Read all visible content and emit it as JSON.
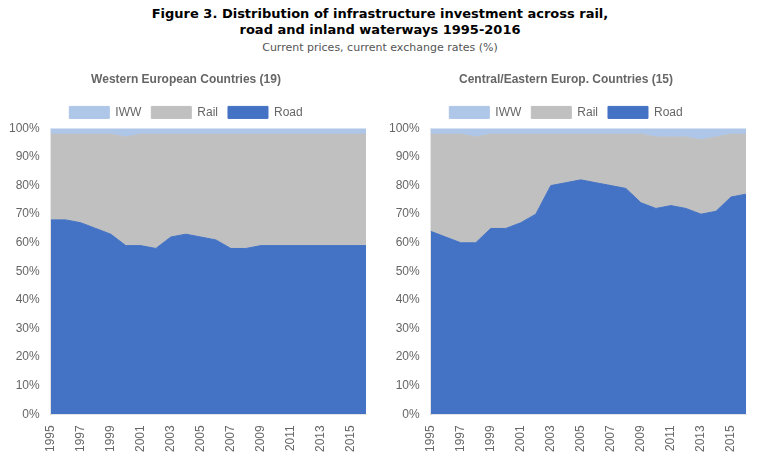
{
  "title": [
    "Figure 3. Distribution of infrastructure investment across rail,",
    "road and inland waterways 1995-2016"
  ],
  "subtitle": "Current prices, current exchange rates (%)",
  "chart_data": [
    {
      "type": "area",
      "title": "Western European Countries (19)",
      "x": [
        1995,
        1996,
        1997,
        1998,
        1999,
        2000,
        2001,
        2002,
        2003,
        2004,
        2005,
        2006,
        2007,
        2008,
        2009,
        2010,
        2011,
        2012,
        2013,
        2014,
        2015,
        2016
      ],
      "series": [
        {
          "name": "Road",
          "color": "#4472C4",
          "values": [
            68,
            68,
            67,
            65,
            63,
            59,
            59,
            58,
            62,
            63,
            62,
            61,
            58,
            58,
            59,
            59,
            59,
            59,
            59,
            59,
            59,
            59
          ]
        },
        {
          "name": "Rail",
          "color": "#C0C0C0",
          "values": [
            30,
            30,
            31,
            33,
            35,
            38,
            39,
            40,
            36,
            35,
            36,
            37,
            40,
            40,
            39,
            39,
            39,
            39,
            39,
            39,
            39,
            39
          ]
        },
        {
          "name": "IWW",
          "color": "#AEC6E8",
          "values": [
            2,
            2,
            2,
            2,
            2,
            3,
            2,
            2,
            2,
            2,
            2,
            2,
            2,
            2,
            2,
            2,
            2,
            2,
            2,
            2,
            2,
            2
          ]
        }
      ],
      "stacked": true,
      "xlim": [
        1995,
        2016
      ],
      "xticks": [
        1995,
        1997,
        1999,
        2001,
        2003,
        2005,
        2007,
        2009,
        2011,
        2013,
        2015
      ],
      "ylim": [
        0,
        100
      ],
      "yticks": [
        {
          "value": 0,
          "label": "0%"
        },
        {
          "value": 10,
          "label": "10%"
        },
        {
          "value": 20,
          "label": "20%"
        },
        {
          "value": 30,
          "label": "30%"
        },
        {
          "value": 40,
          "label": "40%"
        },
        {
          "value": 50,
          "label": "50%"
        },
        {
          "value": 60,
          "label": "60%"
        },
        {
          "value": 70,
          "label": "70%"
        },
        {
          "value": 80,
          "label": "80%"
        },
        {
          "value": 90,
          "label": "90%"
        },
        {
          "value": 100,
          "label": "100%"
        }
      ],
      "grid": false,
      "legend": "top"
    },
    {
      "type": "area",
      "title": "Central/Eastern Europ. Countries (15)",
      "x": [
        1995,
        1996,
        1997,
        1998,
        1999,
        2000,
        2001,
        2002,
        2003,
        2004,
        2005,
        2006,
        2007,
        2008,
        2009,
        2010,
        2011,
        2012,
        2013,
        2014,
        2015,
        2016
      ],
      "series": [
        {
          "name": "Road",
          "color": "#4472C4",
          "values": [
            64,
            62,
            60,
            60,
            65,
            65,
            67,
            70,
            80,
            81,
            82,
            81,
            80,
            79,
            74,
            72,
            73,
            72,
            70,
            71,
            76,
            77
          ]
        },
        {
          "name": "Rail",
          "color": "#C0C0C0",
          "values": [
            34,
            36,
            38,
            37,
            33,
            33,
            31,
            28,
            18,
            17,
            16,
            17,
            18,
            19,
            24,
            25,
            24,
            25,
            26,
            26,
            22,
            21
          ]
        },
        {
          "name": "IWW",
          "color": "#AEC6E8",
          "values": [
            2,
            2,
            2,
            3,
            2,
            2,
            2,
            2,
            2,
            2,
            2,
            2,
            2,
            2,
            2,
            3,
            3,
            3,
            4,
            3,
            2,
            2
          ]
        }
      ],
      "stacked": true,
      "xlim": [
        1995,
        2016
      ],
      "xticks": [
        1995,
        1997,
        1999,
        2001,
        2003,
        2005,
        2007,
        2009,
        2011,
        2013,
        2015
      ],
      "ylim": [
        0,
        100
      ],
      "yticks": [
        {
          "value": 0,
          "label": "0%"
        },
        {
          "value": 10,
          "label": "10%"
        },
        {
          "value": 20,
          "label": "20%"
        },
        {
          "value": 30,
          "label": "30%"
        },
        {
          "value": 40,
          "label": "40%"
        },
        {
          "value": 50,
          "label": "50%"
        },
        {
          "value": 60,
          "label": "60%"
        },
        {
          "value": 70,
          "label": "70%"
        },
        {
          "value": 80,
          "label": "80%"
        },
        {
          "value": 90,
          "label": "90%"
        },
        {
          "value": 100,
          "label": "100%"
        }
      ],
      "grid": false,
      "legend": "top"
    }
  ]
}
